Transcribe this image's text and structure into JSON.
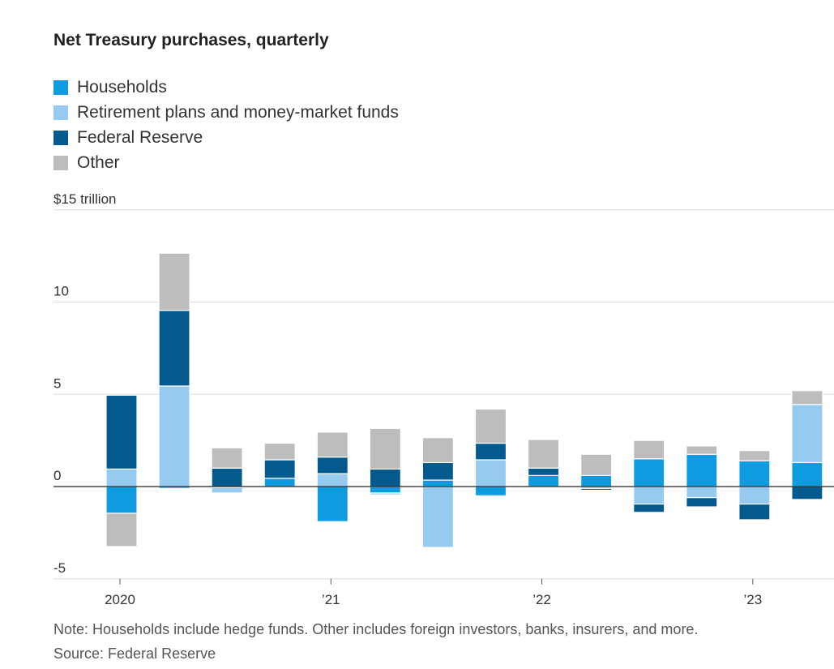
{
  "title": "Net Treasury purchases, quarterly",
  "note": "Note: Households include hedge funds. Other includes foreign investors, banks, insurers, and more.",
  "source": "Source: Federal Reserve",
  "colors": {
    "households": "#0f9be0",
    "retirement": "#96cbef",
    "fed": "#045a8d",
    "other": "#bdbdbd"
  },
  "chart_data": {
    "type": "bar",
    "stacked": true,
    "title": "Net Treasury purchases, quarterly",
    "ylim": [
      -5,
      15
    ],
    "y_ticks": [
      {
        "value": 15,
        "label": "$15 trillion"
      },
      {
        "value": 10,
        "label": "10"
      },
      {
        "value": 5,
        "label": "5"
      },
      {
        "value": 0,
        "label": "0"
      },
      {
        "value": -5,
        "label": "-5"
      }
    ],
    "x_ticks": [
      {
        "index": 0,
        "label": "2020"
      },
      {
        "index": 4,
        "label": "’21"
      },
      {
        "index": 8,
        "label": "’22"
      },
      {
        "index": 12,
        "label": "’23"
      }
    ],
    "categories": [
      "2020 Q1",
      "2020 Q2",
      "2020 Q3",
      "2020 Q4",
      "2021 Q1",
      "2021 Q2",
      "2021 Q3",
      "2021 Q4",
      "2022 Q1",
      "2022 Q2",
      "2022 Q3",
      "2022 Q4",
      "2023 Q1",
      "2023 Q2"
    ],
    "legend": [
      "Households",
      "Retirement plans and money-market funds",
      "Federal Reserve",
      "Other"
    ],
    "series": [
      {
        "name": "Households",
        "key": "households",
        "values": [
          -1.45,
          -0.1,
          -0.05,
          0.45,
          -1.9,
          -0.35,
          0.35,
          -0.5,
          0.6,
          0.6,
          1.5,
          1.75,
          1.4,
          1.3
        ]
      },
      {
        "name": "Retirement plans and money-market funds",
        "key": "retirement",
        "values": [
          0.95,
          5.45,
          -0.3,
          -0.05,
          0.7,
          -0.1,
          -3.3,
          1.45,
          -0.05,
          -0.1,
          -0.95,
          -0.6,
          -0.95,
          3.15
        ]
      },
      {
        "name": "Federal Reserve",
        "key": "fed",
        "values": [
          4.0,
          4.1,
          1.0,
          1.0,
          0.9,
          0.95,
          0.95,
          0.9,
          0.4,
          -0.1,
          -0.45,
          -0.5,
          -0.85,
          -0.7
        ]
      },
      {
        "name": "Other",
        "key": "other",
        "values": [
          -1.8,
          3.1,
          1.1,
          0.9,
          1.35,
          2.2,
          1.35,
          1.85,
          1.55,
          1.15,
          1.0,
          0.45,
          0.55,
          0.75
        ]
      }
    ]
  }
}
